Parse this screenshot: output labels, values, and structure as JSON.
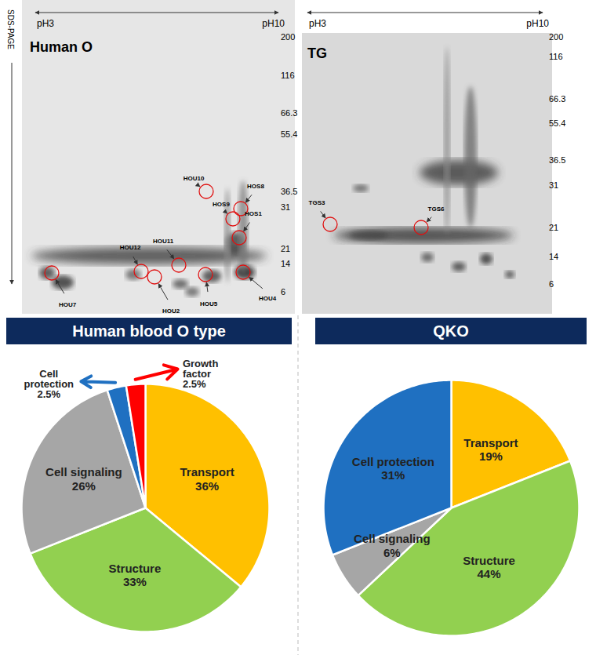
{
  "gels": {
    "x_axis": {
      "left": "pH3",
      "right": "pH10"
    },
    "y_axis": "SDS-PAGE",
    "panels": [
      {
        "title": "Human O",
        "markers": [
          200,
          116,
          66.3,
          55.4,
          36.5,
          31,
          21,
          14,
          6
        ],
        "spots": [
          "HOU10",
          "HOS8",
          "HOS9",
          "HOS1",
          "HOU11",
          "HOU12",
          "HOU7",
          "HOU2",
          "HOU5",
          "HOU4"
        ]
      },
      {
        "title": "TG",
        "markers": [
          200,
          116,
          66.3,
          55.4,
          36.5,
          31,
          21,
          14,
          6
        ],
        "spots": [
          "TGS3",
          "TGS6"
        ]
      }
    ]
  },
  "chart_data": [
    {
      "type": "pie",
      "title": "Human blood O type",
      "categories": [
        "Transport",
        "Structure",
        "Cell signaling",
        "Cell protection",
        "Growth factor"
      ],
      "values": [
        36,
        33,
        26,
        2.5,
        2.5
      ],
      "value_labels": [
        "36%",
        "33%",
        "26%",
        "2.5%",
        "2.5%"
      ],
      "colors": [
        "#ffc000",
        "#92d050",
        "#a6a6a6",
        "#1f70c1",
        "#ff0000"
      ],
      "data_labels": true
    },
    {
      "type": "pie",
      "title": "QKO",
      "categories": [
        "Transport",
        "Structure",
        "Cell signaling",
        "Cell protection"
      ],
      "values": [
        19,
        44,
        6,
        31
      ],
      "value_labels": [
        "19%",
        "44%",
        "6%",
        "31%"
      ],
      "colors": [
        "#ffc000",
        "#92d050",
        "#a6a6a6",
        "#1f70c1"
      ],
      "data_labels": true
    }
  ]
}
